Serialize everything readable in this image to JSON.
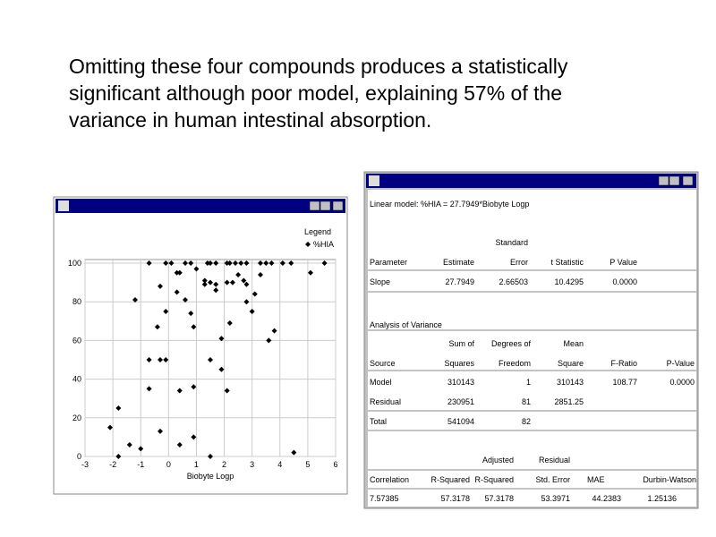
{
  "slide_text": [
    "Omitting these four compounds produces a statistically",
    "significant although poor model, explaining 57% of the",
    "variance in human intestinal absorption."
  ],
  "chart_data": {
    "type": "scatter",
    "x_label": "Biobyte Logp",
    "legend_title": "Legend",
    "series": [
      {
        "name": "%HIA",
        "color": "#000000",
        "x": [
          -0.7,
          -0.1,
          0.1,
          0.6,
          0.8,
          1.0,
          1.4,
          1.5,
          1.7,
          2.1,
          2.2,
          2.4,
          2.6,
          2.8,
          3.3,
          3.5,
          3.7,
          4.1,
          4.4,
          5.6,
          5.1,
          0.3,
          0.4,
          -0.3,
          -1.2,
          0.3,
          0.6,
          1.3,
          1.3,
          1.5,
          1.7,
          1.7,
          2.1,
          2.3,
          2.5,
          2.7,
          2.8,
          3.3,
          3.1,
          2.8,
          -0.1,
          0.8,
          3.0,
          -0.4,
          0.9,
          2.2,
          3.8,
          3.6,
          1.9,
          -0.7,
          -0.3,
          -0.1,
          1.5,
          1.9,
          -0.7,
          0.4,
          0.9,
          2.1,
          -1.8,
          -2.1,
          -0.3,
          -1.4,
          -1.0,
          0.4,
          0.9,
          -1.8,
          1.5,
          4.5
        ],
        "values": [
          100,
          100,
          100,
          100,
          100,
          97,
          100,
          100,
          100,
          100,
          100,
          100,
          100,
          100,
          100,
          100,
          100,
          100,
          100,
          100,
          95,
          95,
          95,
          88,
          81,
          85,
          81,
          91,
          89,
          90,
          89,
          86,
          90,
          90,
          94,
          91,
          89,
          94,
          84,
          80,
          75,
          74,
          75,
          67,
          67,
          69,
          65,
          60,
          61,
          50,
          50,
          50,
          50,
          45,
          35,
          34,
          36,
          34,
          25,
          15,
          13,
          6,
          4,
          6,
          10,
          0,
          0,
          2
        ]
      }
    ],
    "xlim": [
      -3,
      6
    ],
    "ylim": [
      0,
      100
    ],
    "xticks": [
      -3,
      -2,
      -1,
      0,
      1,
      2,
      3,
      4,
      5,
      6
    ],
    "yticks": [
      0,
      20,
      40,
      60,
      80,
      100
    ],
    "grid": true
  },
  "stats": {
    "model": "Linear model: %HIA = 27.7949*Biobyte Logp",
    "coefficients": {
      "headers": [
        [
          "Parameter"
        ],
        [
          "Estimate"
        ],
        [
          "Standard",
          "Error"
        ],
        [
          "t Statistic"
        ],
        [
          "P Value"
        ]
      ],
      "rows": [
        [
          "Slope",
          "27.7949",
          "2.66503",
          "10.4295",
          "0.0000"
        ]
      ]
    },
    "anova_title": "Analysis of Variance",
    "anova": {
      "headers": [
        [
          "Source"
        ],
        [
          "Sum of",
          "Squares"
        ],
        [
          "Degrees of",
          "Freedom"
        ],
        [
          "Mean",
          "Square"
        ],
        [
          "F-Ratio"
        ],
        [
          "P-Value"
        ]
      ],
      "rows": [
        [
          "Model",
          "310143",
          "1",
          "310143",
          "108.77",
          "0.0000"
        ],
        [
          "Residual",
          "230951",
          "81",
          "2851.25"
        ],
        [
          "Total",
          "541094",
          "82"
        ]
      ]
    },
    "summary": {
      "headers": [
        [
          "Correlation"
        ],
        [
          "R-Squared"
        ],
        [
          "Adjusted",
          "R-Squared"
        ],
        [
          "Residual",
          "Std. Error"
        ],
        [
          "MAE"
        ],
        [
          "Durbin-Watson"
        ]
      ],
      "rows": [
        [
          "7.57385",
          "57.3178",
          "57.3178",
          "53.3971",
          "44.2383",
          "1.25136"
        ]
      ]
    }
  }
}
